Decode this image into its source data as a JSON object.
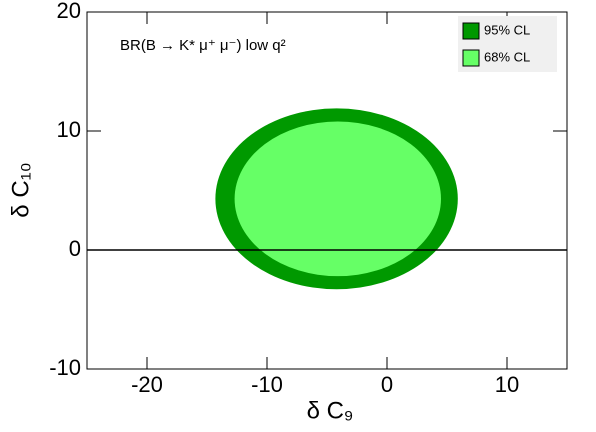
{
  "chart_data": {
    "type": "contour",
    "title": "BR(B → K* μ⁺ μ⁻) low q²",
    "x_label": "δ C₉",
    "y_label": "δ C₁₀",
    "xlim": [
      -25,
      15
    ],
    "ylim": [
      -10,
      20
    ],
    "xticks": [
      -20,
      -10,
      0,
      10
    ],
    "yticks": [
      -10,
      0,
      10,
      20
    ],
    "hline": 0,
    "legend": "top-right",
    "series": [
      {
        "name": "95% CL",
        "color": "#009900",
        "cx": -4.2,
        "cy": 4.3,
        "rx": 10.1,
        "ry": 7.6
      },
      {
        "name": "68% CL",
        "color": "#66ff66",
        "cx": -4.1,
        "cy": 4.3,
        "rx": 8.6,
        "ry": 6.5
      }
    ]
  }
}
